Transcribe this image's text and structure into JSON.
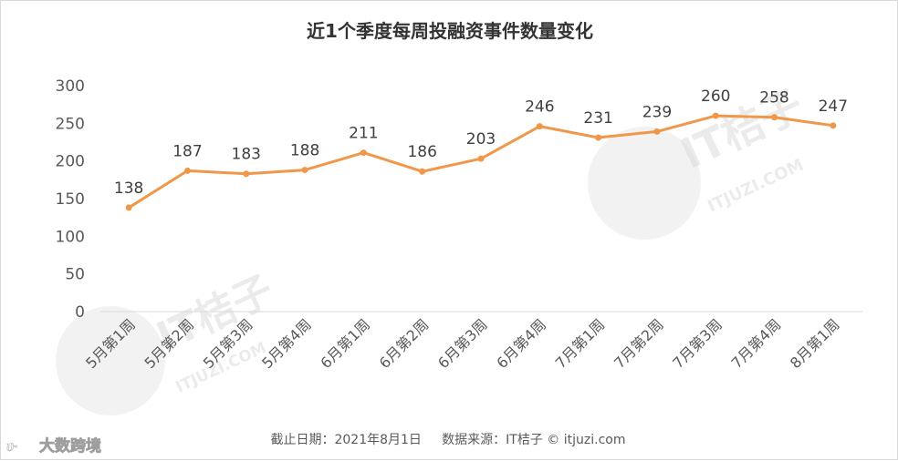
{
  "chart_data": {
    "type": "line",
    "title": "近1个季度每周投融资事件数量变化",
    "categories": [
      "5月第1周",
      "5月第2周",
      "5月第3周",
      "5月第4周",
      "6月第1周",
      "6月第2周",
      "6月第3周",
      "6月第4周",
      "7月第1周",
      "7月第2周",
      "7月第3周",
      "7月第4周",
      "8月第1周"
    ],
    "values": [
      138,
      187,
      183,
      188,
      211,
      186,
      203,
      246,
      231,
      239,
      260,
      258,
      247
    ],
    "ylim": [
      0,
      300
    ],
    "yticks": [
      "0",
      "50",
      "100",
      "150",
      "200",
      "250",
      "300"
    ],
    "grid": false,
    "legend": "none",
    "line_color": "#f0974a"
  },
  "footer": "截止日期：2021年8月1日     数据来源：IT桔子 © itjuzi.com",
  "watermarks": {
    "brand_right": "IT桔子",
    "brand_right_url": "ITJUZI.COM",
    "brand_left": "IT桔子",
    "brand_left_url": "ITJUZI.COM",
    "corner_logo": "大数跨境"
  }
}
